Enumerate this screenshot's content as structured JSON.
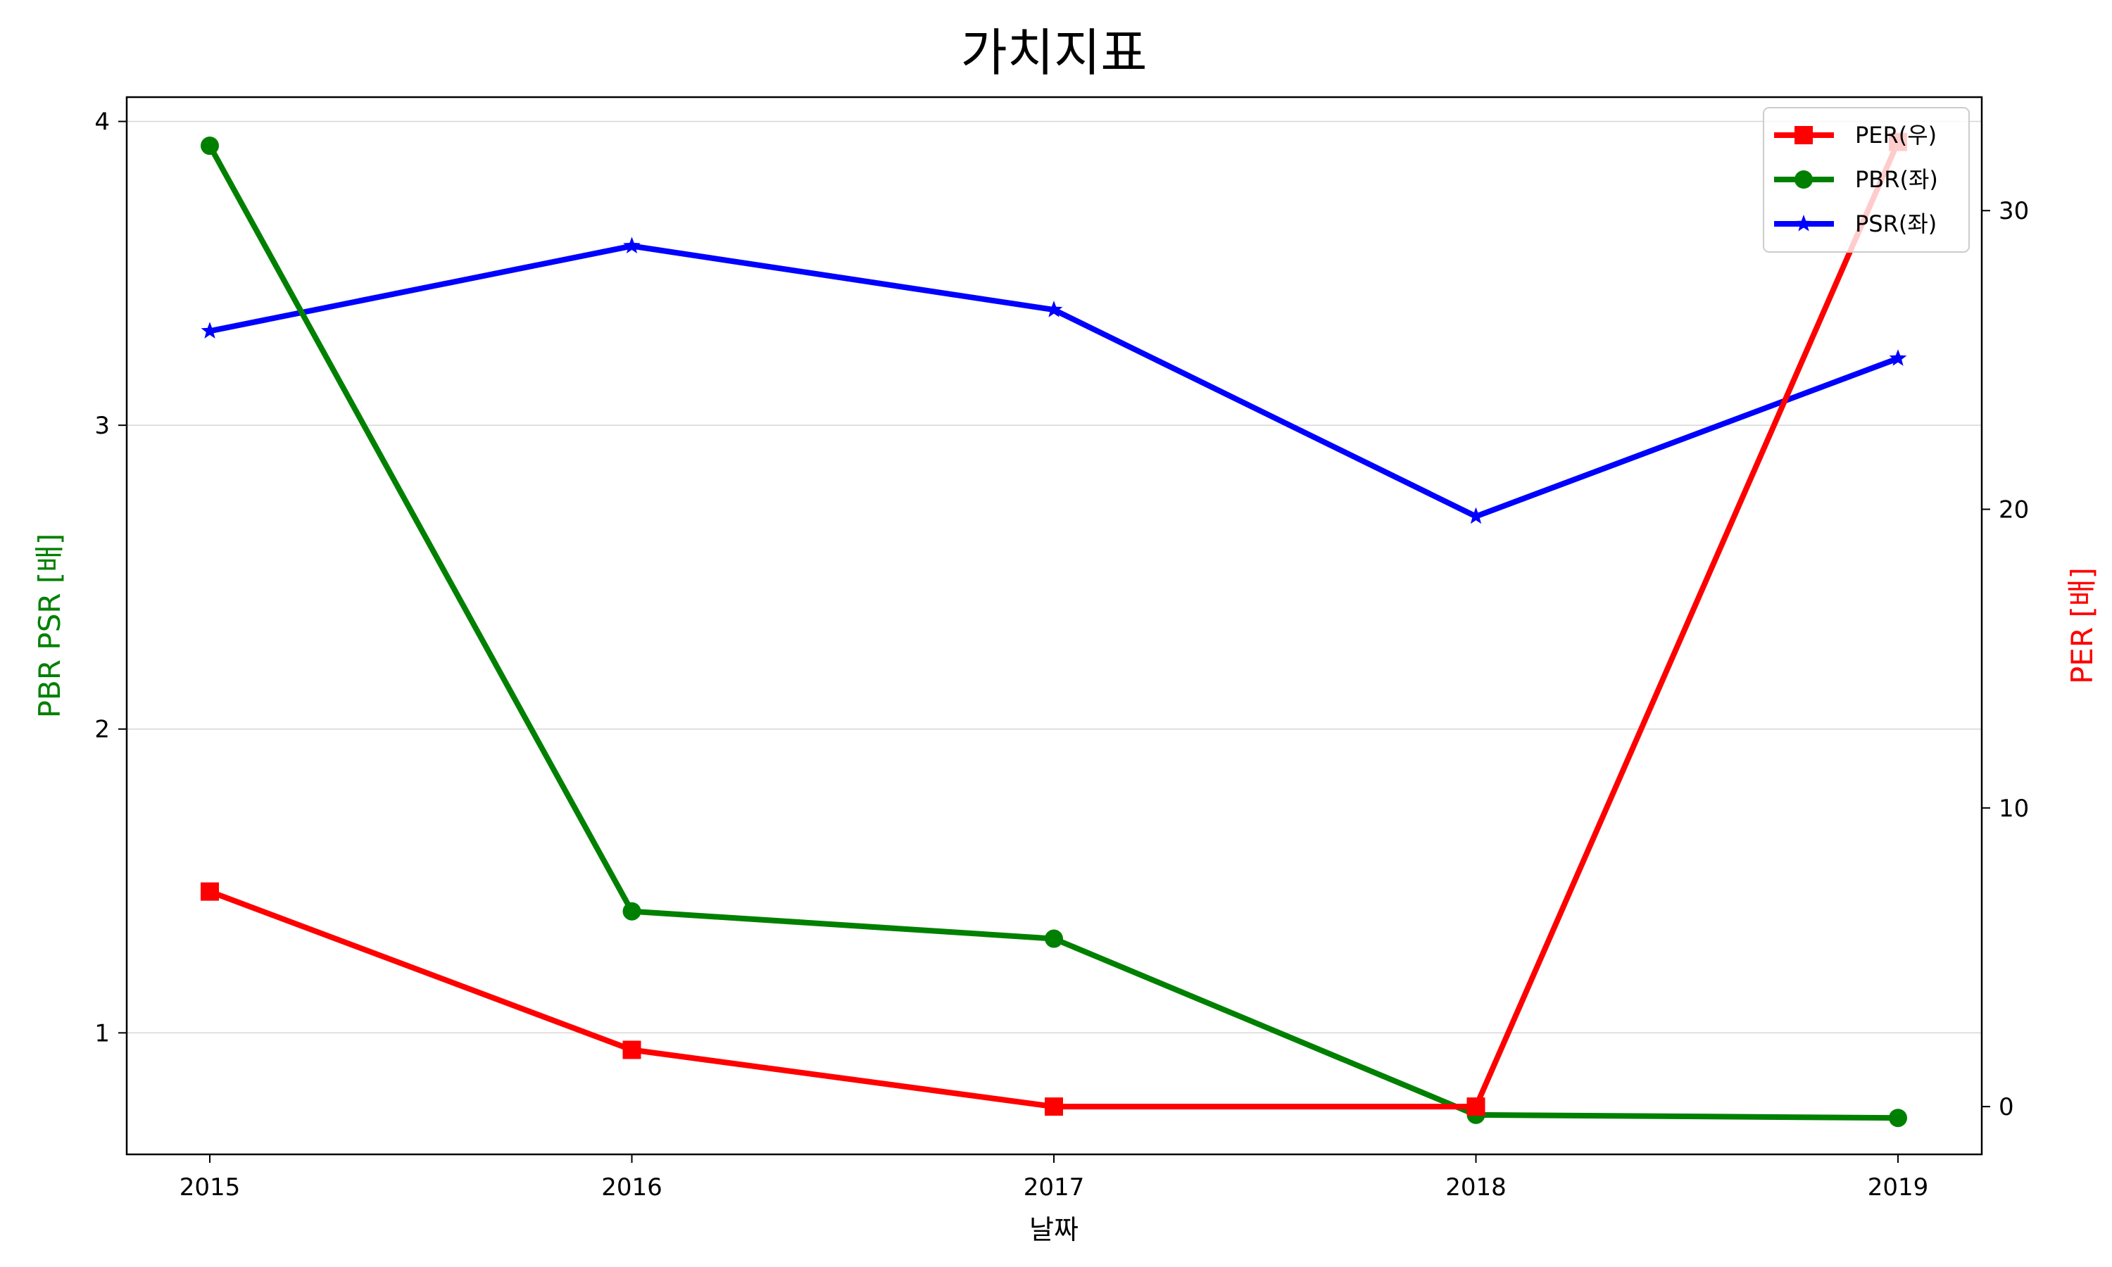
{
  "chart_data": {
    "type": "line",
    "title": "가치지표",
    "xlabel": "날짜",
    "ylabel_left": "PBR PSR [배]",
    "ylabel_right": "PER [배]",
    "categories": [
      "2015",
      "2016",
      "2017",
      "2018",
      "2019"
    ],
    "ylim_left": [
      0.6,
      4.08
    ],
    "ylim_right": [
      -1.6,
      33.8
    ],
    "yticks_left": [
      1,
      2,
      3,
      4
    ],
    "yticks_right": [
      0,
      10,
      20,
      30
    ],
    "grid": "horizontal",
    "legend_position": "top-right",
    "series": [
      {
        "name": "PER(우)",
        "axis": "right",
        "color": "#ff0000",
        "marker": "square",
        "values": [
          7.2,
          1.9,
          0.0,
          0.0,
          32.3
        ]
      },
      {
        "name": "PBR(좌)",
        "axis": "left",
        "color": "#008000",
        "marker": "circle",
        "values": [
          3.92,
          1.4,
          1.31,
          0.73,
          0.72
        ]
      },
      {
        "name": "PSR(좌)",
        "axis": "left",
        "color": "#0000ff",
        "marker": "star",
        "values": [
          3.31,
          3.59,
          3.38,
          2.7,
          3.22
        ]
      }
    ]
  }
}
